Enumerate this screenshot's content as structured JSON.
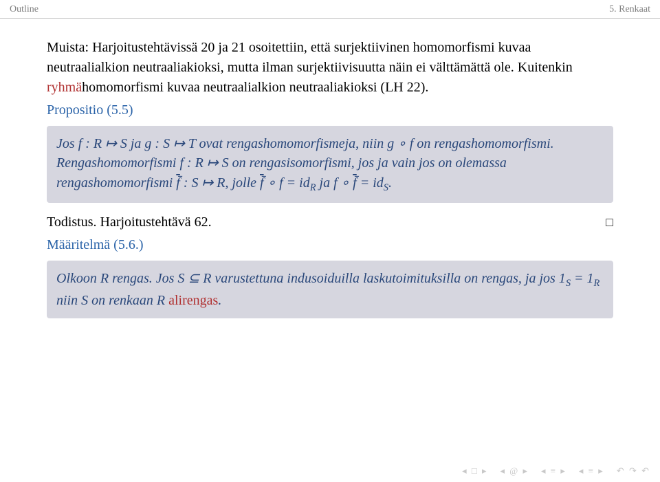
{
  "header": {
    "left": "Outline",
    "right": "5. Renkaat"
  },
  "para1_parts": {
    "a": "Muista: Harjoitustehtävissä 20 ja 21 osoitettiin, että surjektiivinen homomorfismi kuvaa neutraalialkion neutraaliakioksi, mutta ilman surjektiivisuutta näin ei välttämättä ole. Kuitenkin ",
    "b": "ryhmä",
    "c": "homomorfismi kuvaa neutraalialkion neutraaliakioksi (LH 22)."
  },
  "prop_heading": "Propositio (5.5)",
  "prop_box_parts": {
    "a": "Jos f : R ↦ S ja g : S ↦ T ovat rengashomomorfismeja, niin g ∘ f on rengashomomorfismi. Rengashomomorfismi f : R ↦ S on rengasisomorfismi, jos ja vain jos on olemassa rengashomomorfismi ",
    "b": " : S ↦ R, jolle ",
    "c": " ∘ f = id",
    "d": " ja f ∘ ",
    "e": " = id",
    "f": ".",
    "fbar": "f̄",
    "subR": "R",
    "subS": "S"
  },
  "proof": {
    "text": "Todistus. Harjoitustehtävä 62.",
    "qed": "□"
  },
  "def_heading": "Määritelmä (5.6.)",
  "def_box_parts": {
    "a": "Olkoon R rengas. Jos S ⊆ R varustettuna indusoiduilla laskutoimituksilla on rengas, ja jos 1",
    "b": " = 1",
    "c": " niin S on renkaan R ",
    "highlight": "alirengas",
    "d": ".",
    "subS": "S",
    "subR": "R"
  },
  "nav": {
    "back2": "◂ □ ▸",
    "back1": "◂ @ ▸",
    "eq1": "◂ ≡ ▸",
    "eq2": "◂ ≡ ▸",
    "undo": "↶ ↷ ↶"
  }
}
